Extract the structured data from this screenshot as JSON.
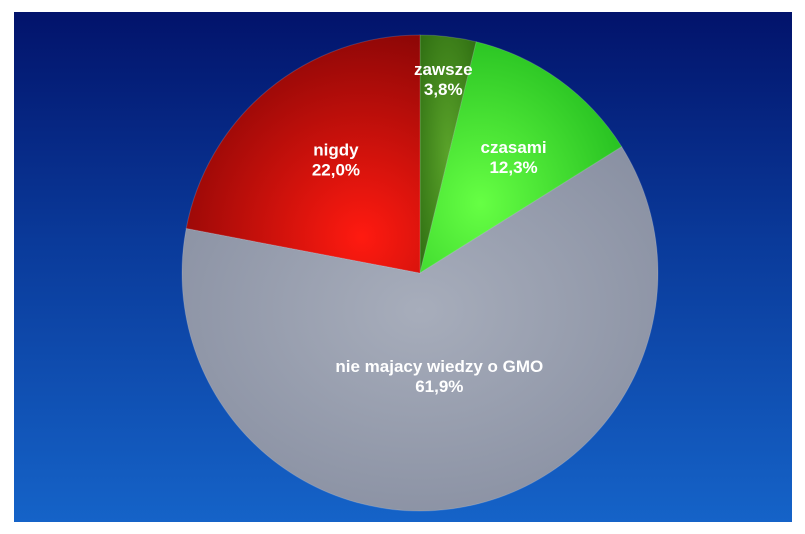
{
  "chart_data": {
    "type": "pie",
    "title": "",
    "categories": [
      "zawsze",
      "czasami",
      "nie majacy wiedzy o GMO",
      "nigdy"
    ],
    "values": [
      3.8,
      12.3,
      61.9,
      22.0
    ],
    "value_labels": [
      "3,8%",
      "12,3%",
      "61,9%",
      "22,0%"
    ],
    "unit": "%",
    "start_angle_deg": 0,
    "direction": "clockwise",
    "legend": "none",
    "colors": [
      "#3f8a1a",
      "#33dd22",
      "#8f97a8",
      "#d4100c"
    ]
  }
}
